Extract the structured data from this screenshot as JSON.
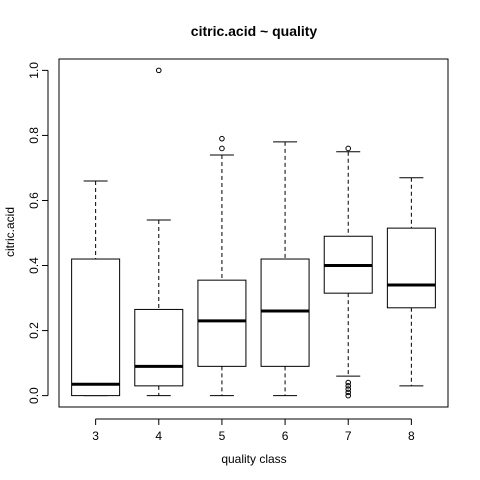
{
  "chart_data": {
    "type": "boxplot",
    "title": "citric.acid ~ quality",
    "xlabel": "quality class",
    "ylabel": "citric.acid",
    "ylim": [
      -0.035,
      1.035
    ],
    "yticks": [
      "0.0",
      "0.2",
      "0.4",
      "0.6",
      "0.8",
      "1.0"
    ],
    "ytick_values": [
      0.0,
      0.2,
      0.4,
      0.6,
      0.8,
      1.0
    ],
    "categories": [
      "3",
      "4",
      "5",
      "6",
      "7",
      "8"
    ],
    "grid": false,
    "boxes": [
      {
        "category": "3",
        "whisker_low": 0.0,
        "q1": 0.0,
        "median": 0.035,
        "q3": 0.42,
        "whisker_high": 0.66,
        "outliers": []
      },
      {
        "category": "4",
        "whisker_low": 0.0,
        "q1": 0.03,
        "median": 0.09,
        "q3": 0.265,
        "whisker_high": 0.54,
        "outliers": [
          1.0
        ]
      },
      {
        "category": "5",
        "whisker_low": 0.0,
        "q1": 0.09,
        "median": 0.23,
        "q3": 0.355,
        "whisker_high": 0.74,
        "outliers": [
          0.76,
          0.79
        ]
      },
      {
        "category": "6",
        "whisker_low": 0.0,
        "q1": 0.09,
        "median": 0.26,
        "q3": 0.42,
        "whisker_high": 0.78,
        "outliers": []
      },
      {
        "category": "7",
        "whisker_low": 0.06,
        "q1": 0.315,
        "median": 0.4,
        "q3": 0.49,
        "whisker_high": 0.75,
        "outliers": [
          0.76,
          0.0,
          0.01,
          0.02,
          0.03,
          0.04
        ]
      },
      {
        "category": "8",
        "whisker_low": 0.03,
        "q1": 0.27,
        "median": 0.34,
        "q3": 0.515,
        "whisker_high": 0.67,
        "outliers": []
      }
    ]
  }
}
